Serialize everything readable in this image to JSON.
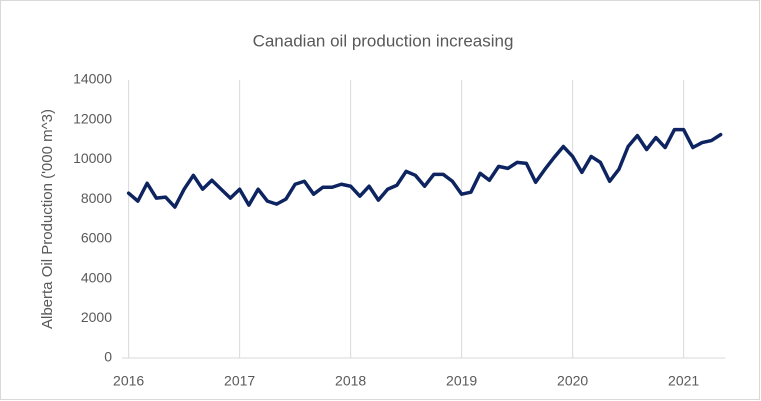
{
  "chart_data": {
    "type": "line",
    "title": "Canadian oil production increasing",
    "y_label": "Alberta Oil Production ('000 m^3)",
    "categories": [
      "2016",
      null,
      null,
      null,
      null,
      null,
      null,
      null,
      null,
      null,
      null,
      null,
      "2017",
      null,
      null,
      null,
      null,
      null,
      null,
      null,
      null,
      null,
      null,
      null,
      "2018",
      null,
      null,
      null,
      null,
      null,
      null,
      null,
      null,
      null,
      null,
      null,
      "2019",
      null,
      null,
      null,
      null,
      null,
      null,
      null,
      null,
      null,
      null,
      null,
      "2020",
      null,
      null,
      null,
      null,
      null,
      null,
      null,
      null,
      null,
      null,
      null,
      "2021",
      null,
      null,
      null,
      null
    ],
    "series": [
      {
        "name": "Alberta Oil Production",
        "color": "#0d2461",
        "values": [
          8300,
          7900,
          8800,
          8050,
          8100,
          7600,
          8500,
          9200,
          8500,
          8950,
          8500,
          8050,
          8500,
          7700,
          8500,
          7900,
          7750,
          8000,
          8750,
          8900,
          8250,
          8600,
          8600,
          8750,
          8650,
          8150,
          8650,
          7950,
          8500,
          8700,
          9400,
          9200,
          8650,
          9250,
          9250,
          8900,
          8250,
          8350,
          9300,
          8950,
          9650,
          9550,
          9850,
          9800,
          8850,
          9500,
          10100,
          10650,
          10150,
          9350,
          10150,
          9850,
          8900,
          9500,
          10650,
          11200,
          10500,
          11100,
          10600,
          11500,
          11500,
          10600,
          10850,
          10950,
          11250
        ]
      }
    ],
    "ylim": [
      0,
      14000
    ],
    "yticks": [
      0,
      2000,
      4000,
      6000,
      8000,
      10000,
      12000,
      14000
    ],
    "grid": true
  }
}
